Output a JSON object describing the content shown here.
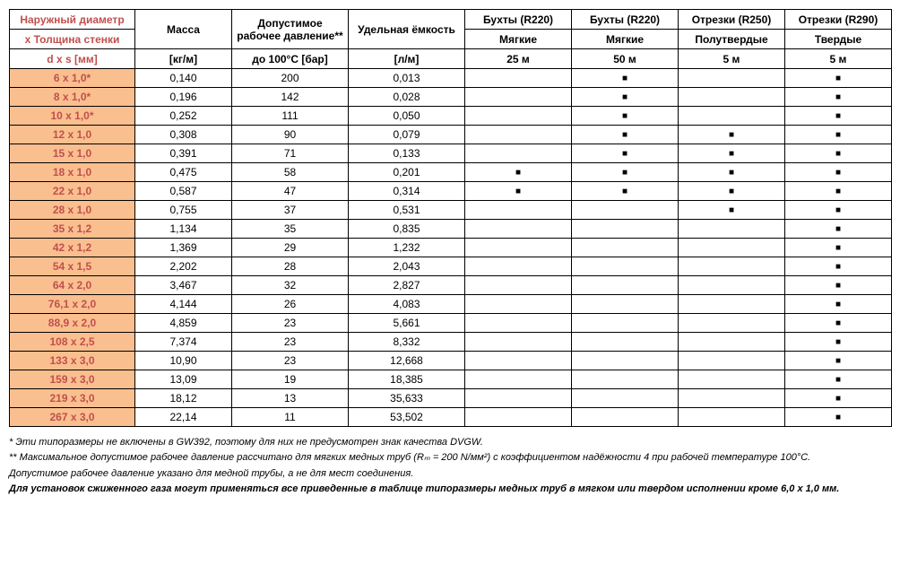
{
  "table": {
    "colors": {
      "header_text_first": "#c0504d",
      "row_label_bg": "#fabf8f",
      "row_label_text": "#c0504d",
      "border": "#000000",
      "marker": "■"
    },
    "header": {
      "row1": [
        "Наружный диаметр",
        "Масса",
        "Допустимое рабочее давление**",
        "Удельная ёмкость",
        "Бухты (R220)",
        "Бухты (R220)",
        "Отрезки (R250)",
        "Отрезки (R290)"
      ],
      "row2": [
        "x Толщина стенки",
        "",
        "",
        "",
        "Мягкие",
        "Мягкие",
        "Полутвердые",
        "Твердые"
      ],
      "row3": [
        "d x s [мм]",
        "[кг/м]",
        "до 100°C [бар]",
        "[л/м]",
        "25 м",
        "50 м",
        "5 м",
        "5 м"
      ]
    },
    "rows": [
      {
        "label": "6 x 1,0*",
        "mass": "0,140",
        "pressure": "200",
        "cap": "0,013",
        "c25": "",
        "c50": "■",
        "c5a": "",
        "c5b": "■"
      },
      {
        "label": "8 x 1,0*",
        "mass": "0,196",
        "pressure": "142",
        "cap": "0,028",
        "c25": "",
        "c50": "■",
        "c5a": "",
        "c5b": "■"
      },
      {
        "label": "10 x 1,0*",
        "mass": "0,252",
        "pressure": "111",
        "cap": "0,050",
        "c25": "",
        "c50": "■",
        "c5a": "",
        "c5b": "■"
      },
      {
        "label": "12 x 1,0",
        "mass": "0,308",
        "pressure": "90",
        "cap": "0,079",
        "c25": "",
        "c50": "■",
        "c5a": "■",
        "c5b": "■"
      },
      {
        "label": "15 x 1,0",
        "mass": "0,391",
        "pressure": "71",
        "cap": "0,133",
        "c25": "",
        "c50": "■",
        "c5a": "■",
        "c5b": "■"
      },
      {
        "label": "18 x 1,0",
        "mass": "0,475",
        "pressure": "58",
        "cap": "0,201",
        "c25": "■",
        "c50": "■",
        "c5a": "■",
        "c5b": "■"
      },
      {
        "label": "22 x 1,0",
        "mass": "0,587",
        "pressure": "47",
        "cap": "0,314",
        "c25": "■",
        "c50": "■",
        "c5a": "■",
        "c5b": "■"
      },
      {
        "label": "28 x 1,0",
        "mass": "0,755",
        "pressure": "37",
        "cap": "0,531",
        "c25": "",
        "c50": "",
        "c5a": "■",
        "c5b": "■"
      },
      {
        "label": "35 x 1,2",
        "mass": "1,134",
        "pressure": "35",
        "cap": "0,835",
        "c25": "",
        "c50": "",
        "c5a": "",
        "c5b": "■"
      },
      {
        "label": "42 x 1,2",
        "mass": "1,369",
        "pressure": "29",
        "cap": "1,232",
        "c25": "",
        "c50": "",
        "c5a": "",
        "c5b": "■"
      },
      {
        "label": "54 x 1,5",
        "mass": "2,202",
        "pressure": "28",
        "cap": "2,043",
        "c25": "",
        "c50": "",
        "c5a": "",
        "c5b": "■"
      },
      {
        "label": "64 x 2,0",
        "mass": "3,467",
        "pressure": "32",
        "cap": "2,827",
        "c25": "",
        "c50": "",
        "c5a": "",
        "c5b": "■"
      },
      {
        "label": "76,1 x 2,0",
        "mass": "4,144",
        "pressure": "26",
        "cap": "4,083",
        "c25": "",
        "c50": "",
        "c5a": "",
        "c5b": "■"
      },
      {
        "label": "88,9 x 2,0",
        "mass": "4,859",
        "pressure": "23",
        "cap": "5,661",
        "c25": "",
        "c50": "",
        "c5a": "",
        "c5b": "■"
      },
      {
        "label": "108 x 2,5",
        "mass": "7,374",
        "pressure": "23",
        "cap": "8,332",
        "c25": "",
        "c50": "",
        "c5a": "",
        "c5b": "■"
      },
      {
        "label": "133 x 3,0",
        "mass": "10,90",
        "pressure": "23",
        "cap": "12,668",
        "c25": "",
        "c50": "",
        "c5a": "",
        "c5b": "■"
      },
      {
        "label": "159 x 3,0",
        "mass": "13,09",
        "pressure": "19",
        "cap": "18,385",
        "c25": "",
        "c50": "",
        "c5a": "",
        "c5b": "■"
      },
      {
        "label": "219 x 3,0",
        "mass": "18,12",
        "pressure": "13",
        "cap": "35,633",
        "c25": "",
        "c50": "",
        "c5a": "",
        "c5b": "■"
      },
      {
        "label": "267 x 3,0",
        "mass": "22,14",
        "pressure": "11",
        "cap": "53,502",
        "c25": "",
        "c50": "",
        "c5a": "",
        "c5b": "■"
      }
    ]
  },
  "footnotes": {
    "n1": "*   Эти типоразмеры не включены в GW392, поэтому для них не предусмотрен знак качества DVGW.",
    "n2": "**  Максимальное допустимое рабочее давление рассчитано для мягких медных труб (Rₘ = 200 N/мм²) с коэффициентом надёжности 4 при рабочей температуре 100°C.",
    "n3": "    Допустимое рабочее давление указано для медной трубы, а не для мест соединения.",
    "final": "Для установок сжиженного газа могут применяться все приведенные в таблице типоразмеры медных труб  в мягком или твердом исполнении кроме  6,0 x 1,0 мм."
  }
}
